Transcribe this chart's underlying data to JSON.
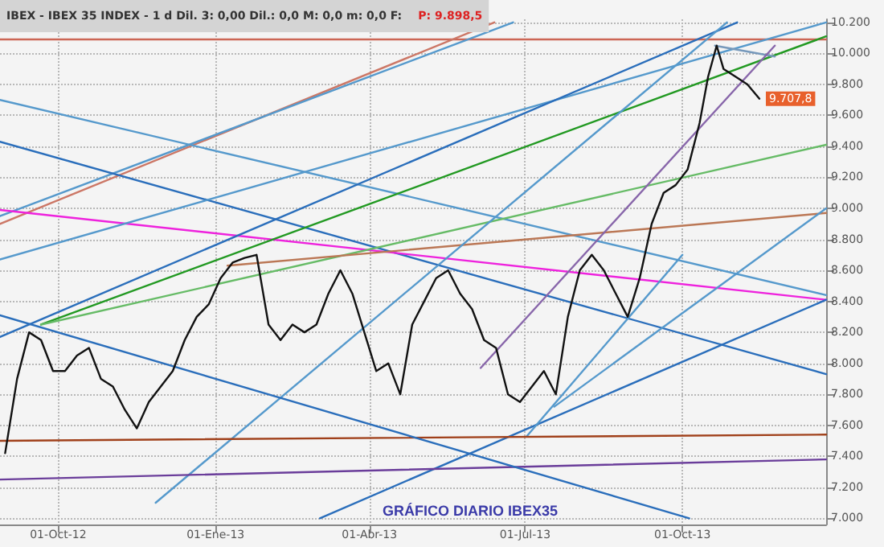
{
  "chart_data": {
    "type": "line",
    "title": "IBEX - IBEX 35 INDEX - 1 d Dil. 3: 0,00 Dil.: 0,0 M: 0,0 m: 0,0 F:",
    "subtitle": "P: 9.898,5",
    "annotations": [
      "GRÁFICO DIARIO IBEX35"
    ],
    "xlim": [
      "2012-08-28",
      "2013-12-24"
    ],
    "xticks": [
      {
        "value": "2012-10-01",
        "label": "01-Oct-12"
      },
      {
        "value": "2013-01-01",
        "label": "01-Ene-13"
      },
      {
        "value": "2013-04-01",
        "label": "01-Abr-13"
      },
      {
        "value": "2013-07-01",
        "label": "01-Jul-13"
      },
      {
        "value": "2013-10-01",
        "label": "01-Oct-13"
      }
    ],
    "ylim": [
      6960,
      10220
    ],
    "yticks": [
      {
        "value": 7000,
        "label": "7.000"
      },
      {
        "value": 7200,
        "label": "7.200"
      },
      {
        "value": 7400,
        "label": "7.400"
      },
      {
        "value": 7600,
        "label": "7.600"
      },
      {
        "value": 7800,
        "label": "7.800"
      },
      {
        "value": 8000,
        "label": "8.000"
      },
      {
        "value": 8200,
        "label": "8.200"
      },
      {
        "value": 8400,
        "label": "8.400"
      },
      {
        "value": 8600,
        "label": "8.600"
      },
      {
        "value": 8800,
        "label": "8.800"
      },
      {
        "value": 9000,
        "label": "9.000"
      },
      {
        "value": 9200,
        "label": "9.200"
      },
      {
        "value": 9400,
        "label": "9.400"
      },
      {
        "value": 9600,
        "label": "9.600"
      },
      {
        "value": 9800,
        "label": "9.800"
      },
      {
        "value": 10000,
        "label": "10.000"
      },
      {
        "value": 10200,
        "label": "10.200"
      }
    ],
    "grid": true,
    "marker": "none",
    "line_style": "solid",
    "series": [
      {
        "color": "#cc6655",
        "x": [
          "2012-08-28",
          "2013-12-24"
        ],
        "values": [
          10090,
          10090
        ]
      },
      {
        "color": "#cc7766",
        "x": [
          "2012-08-28",
          "2013-06-13"
        ],
        "values": [
          8900,
          10200
        ]
      },
      {
        "color": "#5599cc",
        "x": [
          "2012-08-28",
          "2013-06-24"
        ],
        "values": [
          8950,
          10200
        ]
      },
      {
        "color": "#5599cc",
        "x": [
          "2012-08-28",
          "2013-12-24"
        ],
        "values": [
          9700,
          8440
        ]
      },
      {
        "color": "#2a6ebb",
        "x": [
          "2012-08-28",
          "2013-12-24"
        ],
        "values": [
          9430,
          7930
        ]
      },
      {
        "color": "#ee22dd",
        "x": [
          "2012-08-28",
          "2013-12-24"
        ],
        "values": [
          8990,
          8410
        ]
      },
      {
        "color": "#5599cc",
        "x": [
          "2012-08-28",
          "2013-12-24"
        ],
        "values": [
          8670,
          10200
        ]
      },
      {
        "color": "#2a6ebb",
        "x": [
          "2012-08-28",
          "2013-11-02"
        ],
        "values": [
          8170,
          10200
        ]
      },
      {
        "color": "#229922",
        "x": [
          "2012-09-21",
          "2013-12-24"
        ],
        "values": [
          8250,
          10110
        ]
      },
      {
        "color": "#66bb66",
        "x": [
          "2012-09-21",
          "2013-12-24"
        ],
        "values": [
          8250,
          9410
        ]
      },
      {
        "color": "#bb7755",
        "x": [
          "2013-01-08",
          "2013-12-24"
        ],
        "values": [
          8630,
          8970
        ]
      },
      {
        "color": "#7799bb",
        "x": [
          "2013-10-20",
          "2013-11-24"
        ],
        "values": [
          10050,
          9980
        ]
      },
      {
        "color": "#2a6ebb",
        "x": [
          "2013-03-03",
          "2013-12-24"
        ],
        "values": [
          7000,
          8410
        ]
      },
      {
        "color": "#5599cc",
        "x": [
          "2012-11-27",
          "2013-10-27"
        ],
        "values": [
          7100,
          10200
        ]
      },
      {
        "color": "#8866aa",
        "x": [
          "2013-06-05",
          "2013-11-24"
        ],
        "values": [
          7970,
          10050
        ]
      },
      {
        "color": "#5599cc",
        "x": [
          "2013-07-18",
          "2013-12-24"
        ],
        "values": [
          7720,
          9000
        ]
      },
      {
        "color": "#5599cc",
        "x": [
          "2013-07-02",
          "2013-10-01"
        ],
        "values": [
          7530,
          8700
        ]
      },
      {
        "color": "#a0401a",
        "x": [
          "2012-08-28",
          "2013-12-24"
        ],
        "values": [
          7500,
          7540
        ]
      },
      {
        "color": "#6a3d9a",
        "x": [
          "2012-08-28",
          "2013-12-24"
        ],
        "values": [
          7250,
          7380
        ]
      },
      {
        "color": "#2a6ebb",
        "x": [
          "2012-08-28",
          "2013-10-05"
        ],
        "values": [
          8310,
          7000
        ]
      },
      {
        "color": "#111111",
        "x": [
          "2012-08-31",
          "2012-09-07",
          "2012-09-14",
          "2012-09-21",
          "2012-09-28",
          "2012-10-05",
          "2012-10-12",
          "2012-10-19",
          "2012-10-26",
          "2012-11-02",
          "2012-11-09",
          "2012-11-16",
          "2012-11-23",
          "2012-11-30",
          "2012-12-07",
          "2012-12-14",
          "2012-12-21",
          "2012-12-28",
          "2013-01-04",
          "2013-01-11",
          "2013-01-18",
          "2013-01-25",
          "2013-02-01",
          "2013-02-08",
          "2013-02-15",
          "2013-02-22",
          "2013-03-01",
          "2013-03-08",
          "2013-03-15",
          "2013-03-22",
          "2013-03-29",
          "2013-04-05",
          "2013-04-12",
          "2013-04-19",
          "2013-04-26",
          "2013-05-03",
          "2013-05-10",
          "2013-05-17",
          "2013-05-24",
          "2013-05-31",
          "2013-06-07",
          "2013-06-14",
          "2013-06-21",
          "2013-06-28",
          "2013-07-05",
          "2013-07-12",
          "2013-07-19",
          "2013-07-26",
          "2013-08-02",
          "2013-08-09",
          "2013-08-16",
          "2013-08-23",
          "2013-08-30",
          "2013-09-06",
          "2013-09-13",
          "2013-09-20",
          "2013-09-27",
          "2013-10-04",
          "2013-10-11",
          "2013-10-16",
          "2013-10-21",
          "2013-10-25",
          "2013-11-01",
          "2013-11-08",
          "2013-11-15"
        ],
        "value_labels": [
          null,
          null,
          null,
          null,
          null,
          null,
          null,
          null,
          null,
          null,
          null,
          null,
          null,
          null,
          null,
          null,
          null,
          null,
          null,
          null,
          null,
          null,
          null,
          null,
          null,
          null,
          null,
          null,
          null,
          null,
          null,
          null,
          null,
          null,
          null,
          null,
          null,
          null,
          null,
          null,
          null,
          null,
          null,
          null,
          null,
          null,
          null,
          null,
          null,
          null,
          null,
          null,
          null,
          null,
          null,
          null,
          null,
          null,
          null,
          null,
          null,
          null,
          null,
          null,
          "9.707,8"
        ],
        "values": [
          7420,
          7900,
          8200,
          8150,
          7950,
          7950,
          8050,
          8100,
          7900,
          7850,
          7700,
          7580,
          7750,
          7850,
          7950,
          8150,
          8300,
          8380,
          8550,
          8650,
          8680,
          8700,
          8250,
          8150,
          8250,
          8200,
          8250,
          8450,
          8600,
          8450,
          8200,
          7950,
          8000,
          7800,
          8250,
          8400,
          8550,
          8600,
          8450,
          8350,
          8150,
          8100,
          7800,
          7750,
          7850,
          7950,
          7800,
          8300,
          8600,
          8700,
          8600,
          8450,
          8300,
          8550,
          8900,
          9100,
          9150,
          9250,
          9550,
          9850,
          10050,
          9900,
          9850,
          9800,
          9707.8
        ]
      }
    ]
  }
}
